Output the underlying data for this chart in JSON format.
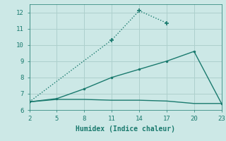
{
  "line1_x": [
    2,
    11,
    14,
    17
  ],
  "line1_y": [
    6.5,
    10.3,
    12.1,
    11.35
  ],
  "line2_x": [
    2,
    5,
    8,
    11,
    14,
    17,
    20,
    23
  ],
  "line2_y": [
    6.5,
    6.7,
    7.3,
    8.0,
    8.5,
    9.0,
    9.6,
    6.4
  ],
  "line3_x": [
    2,
    5,
    8,
    11,
    14,
    17,
    20,
    23
  ],
  "line3_y": [
    6.5,
    6.65,
    6.65,
    6.6,
    6.6,
    6.55,
    6.4,
    6.4
  ],
  "color": "#1a7a6e",
  "bg_color": "#cce8e6",
  "grid_color": "#aed0cd",
  "xlabel": "Humidex (Indice chaleur)",
  "xlim": [
    2,
    23
  ],
  "ylim": [
    6,
    12.5
  ],
  "xticks": [
    2,
    5,
    8,
    11,
    14,
    17,
    20,
    23
  ],
  "yticks": [
    6,
    7,
    8,
    9,
    10,
    11,
    12
  ]
}
